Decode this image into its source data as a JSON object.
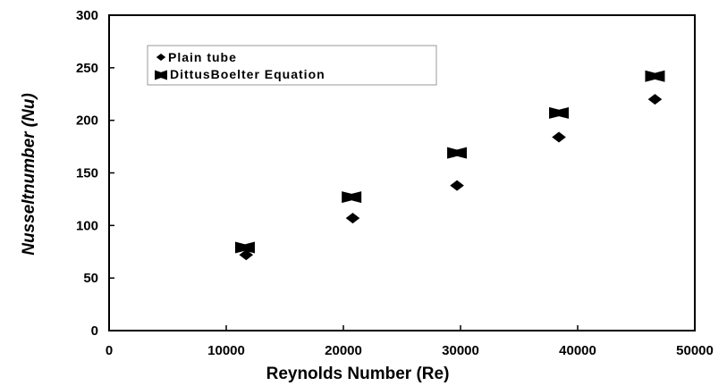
{
  "chart_data": {
    "type": "scatter",
    "xlabel": "Reynolds Number (Re)",
    "ylabel": "Nusseltnumber (Nu)",
    "xlim": [
      0,
      50000
    ],
    "ylim": [
      0,
      300
    ],
    "xticks": [
      "0",
      "10000",
      "20000",
      "30000",
      "40000",
      "50000"
    ],
    "yticks": [
      "0",
      "50",
      "100",
      "150",
      "200",
      "250",
      "300"
    ],
    "grid": false,
    "legend_position": "top-left",
    "series": [
      {
        "name": "Plain tube",
        "marker": "diamond",
        "color": "#000000",
        "points": [
          {
            "x": 11700,
            "y": 72
          },
          {
            "x": 20800,
            "y": 107
          },
          {
            "x": 29700,
            "y": 138
          },
          {
            "x": 38400,
            "y": 184
          },
          {
            "x": 46600,
            "y": 220
          }
        ]
      },
      {
        "name": "DittusBoelter  Equation",
        "marker": "bowtie-square",
        "color": "#000000",
        "points": [
          {
            "x": 11600,
            "y": 79
          },
          {
            "x": 20700,
            "y": 127
          },
          {
            "x": 29700,
            "y": 169
          },
          {
            "x": 38400,
            "y": 207
          },
          {
            "x": 46600,
            "y": 242
          }
        ]
      }
    ]
  }
}
